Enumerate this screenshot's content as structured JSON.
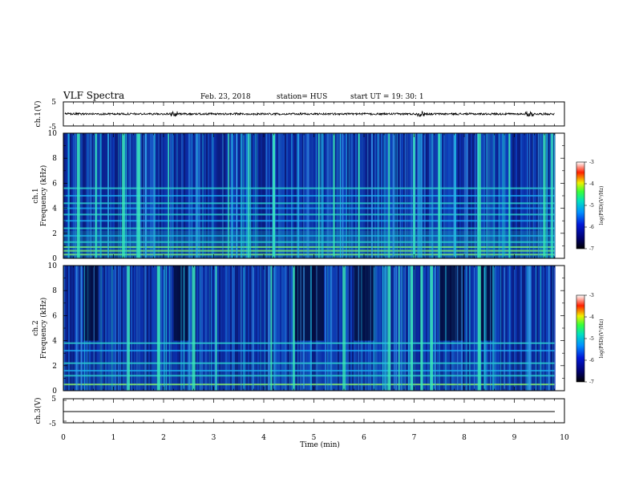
{
  "header": {
    "title": "VLF Spectra",
    "date": "Feb. 23, 2018",
    "station": "station= HUS",
    "start": "start  UT =   19: 30: 1"
  },
  "colors": {
    "spectrogram_background": "#0b1e8c",
    "colormap": [
      "#000000",
      "#00006e",
      "#0018d8",
      "#0090ff",
      "#00e0c0",
      "#38ff38",
      "#f0f000",
      "#ff2000",
      "#ffffff"
    ]
  },
  "chart_data": [
    {
      "type": "line",
      "name": "ch1-waveform",
      "title": "",
      "ylabel": "ch.1(V)",
      "ylim": [
        -5,
        5
      ],
      "yticks": [
        "5",
        "-5"
      ],
      "xlim": [
        0,
        9.8
      ],
      "baseline": 0,
      "amplitude_approx": 0.4,
      "spikes_min": [
        2.2,
        7.15,
        9.3
      ]
    },
    {
      "type": "heatmap",
      "name": "ch1-spectrogram",
      "title": "",
      "xlim": [
        0,
        9.8
      ],
      "ylim": [
        0,
        10
      ],
      "yticks": [
        "0",
        "2",
        "4",
        "6",
        "8",
        "10"
      ],
      "ylabel": [
        "ch.1",
        "Frequency (kHz)"
      ],
      "horizontal_lines_khz": [
        0.3,
        0.6,
        0.9,
        1.3,
        1.8,
        2.4,
        3.0,
        3.5,
        4.0,
        4.4,
        5.0,
        5.6
      ],
      "bright_bursts_min": [
        0.3,
        0.65,
        1.2,
        1.5,
        2.1,
        3.3,
        3.7,
        4.2,
        5.1,
        5.4,
        5.9,
        6.5,
        7.0,
        7.5,
        8.3,
        8.9,
        9.6,
        9.75
      ],
      "colorbar": {
        "label": "log(PSD)(V²/Hz)",
        "range": [
          -7,
          -3
        ],
        "ticks": [
          "-3",
          "-4",
          "-5",
          "-6",
          "-7"
        ]
      }
    },
    {
      "type": "heatmap",
      "name": "ch2-spectrogram",
      "title": "",
      "xlim": [
        0,
        9.8
      ],
      "ylim": [
        0,
        10
      ],
      "yticks": [
        "0",
        "2",
        "4",
        "6",
        "8",
        "10"
      ],
      "ylabel": [
        "ch.2",
        "Frequency (kHz)"
      ],
      "horizontal_lines_khz": [
        0.5,
        1.2,
        1.6,
        2.2,
        3.2,
        3.8
      ],
      "bright_bursts_min": [
        1.3,
        1.9,
        2.6,
        3.05,
        4.15,
        4.6,
        5.6,
        6.5,
        6.7,
        6.95,
        7.15,
        7.35,
        8.3
      ],
      "dark_regions_min": [
        [
          0.4,
          0.7
        ],
        [
          2.2,
          2.5
        ],
        [
          4.6,
          5.2
        ],
        [
          5.8,
          6.2
        ],
        [
          7.5,
          8.0
        ],
        [
          8.3,
          8.6
        ]
      ],
      "colorbar": {
        "label": "log(PSD)(V²/Hz)",
        "range": [
          -7,
          -3
        ],
        "ticks": [
          "-3",
          "-4",
          "-5",
          "-6",
          "-7"
        ]
      }
    },
    {
      "type": "line",
      "name": "ch3-waveform",
      "title": "",
      "ylabel": "ch.3(V)",
      "ylim": [
        -5,
        5
      ],
      "yticks": [
        "5",
        "-5"
      ],
      "xlim": [
        0,
        10
      ],
      "baseline": 0,
      "amplitude_approx": 0
    }
  ],
  "xaxis": {
    "label": "Time  (min)",
    "ticks": [
      "0",
      "1",
      "2",
      "3",
      "4",
      "5",
      "6",
      "7",
      "8",
      "9",
      "10"
    ],
    "range": [
      0,
      10
    ]
  }
}
